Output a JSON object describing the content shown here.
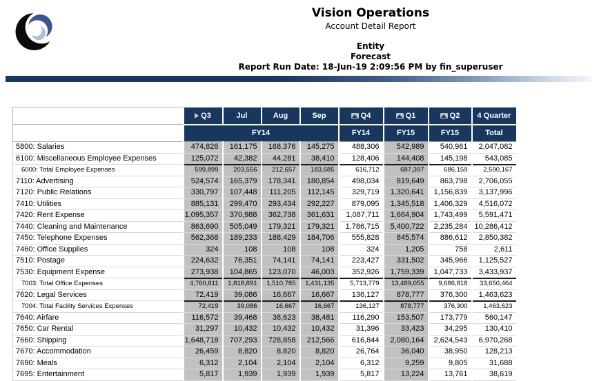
{
  "header": {
    "company": "Vision Operations",
    "report_name": "Account Detail Report",
    "dimension": "Entity",
    "scenario": "Forecast",
    "run_date": "Report Run Date: 18-Jun-19 2:09:56 PM by fin_superuser"
  },
  "colors": {
    "header_navy": "#17375e",
    "shaded_cell": "#c1c1c1",
    "logo_black": "#0b0b0b",
    "logo_blue": "#3d5493",
    "logo_light_blue": "#aebede"
  },
  "table": {
    "columns": [
      {
        "label": "Q3",
        "icon": "expanded-marker-icon",
        "shaded": true
      },
      {
        "label": "Jul",
        "icon": null,
        "shaded": true
      },
      {
        "label": "Aug",
        "icon": null,
        "shaded": true
      },
      {
        "label": "Sep",
        "icon": null,
        "shaded": true
      },
      {
        "label": "Q4",
        "icon": "collapsed-marker-icon",
        "shaded": false
      },
      {
        "label": "Q1",
        "icon": "collapsed-marker-icon",
        "shaded": true
      },
      {
        "label": "Q2",
        "icon": "collapsed-marker-icon",
        "shaded": false
      },
      {
        "label": "4 Quarter",
        "icon": null,
        "shaded": false
      }
    ],
    "subheaders": [
      {
        "label": "FY14",
        "span": 4
      },
      {
        "label": "FY14",
        "span": 1
      },
      {
        "label": "FY15",
        "span": 1
      },
      {
        "label": "FY15",
        "span": 1
      },
      {
        "label": "Total",
        "span": 1
      }
    ],
    "rows": [
      {
        "label": "5800: Salaries",
        "subtotal": false,
        "values": [
          "474,826",
          "161,175",
          "168,376",
          "145,275",
          "488,306",
          "542,989",
          "540,961",
          "2,047,082"
        ]
      },
      {
        "label": "6100: Miscellaneous Employee Expenses",
        "subtotal": false,
        "values": [
          "125,072",
          "42,382",
          "44,281",
          "38,410",
          "128,406",
          "144,408",
          "145,198",
          "543,085"
        ]
      },
      {
        "label": "6000: Total Employee Expenses",
        "subtotal": true,
        "values": [
          "599,899",
          "203,556",
          "212,657",
          "183,685",
          "616,712",
          "687,397",
          "686,159",
          "2,590,167"
        ]
      },
      {
        "label": "7110: Advertising",
        "subtotal": false,
        "values": [
          "524,574",
          "165,379",
          "178,341",
          "180,854",
          "498,034",
          "819,649",
          "863,798",
          "2,706,055"
        ]
      },
      {
        "label": "7120: Public Relations",
        "subtotal": false,
        "values": [
          "330,797",
          "107,448",
          "111,205",
          "112,145",
          "329,719",
          "1,320,641",
          "1,156,839",
          "3,137,996"
        ]
      },
      {
        "label": "7410: Utilities",
        "subtotal": false,
        "values": [
          "885,131",
          "299,470",
          "293,434",
          "292,227",
          "879,095",
          "1,345,518",
          "1,406,329",
          "4,516,072"
        ]
      },
      {
        "label": "7420: Rent Expense",
        "subtotal": false,
        "values": [
          "1,095,357",
          "370,988",
          "362,738",
          "361,631",
          "1,087,711",
          "1,664,904",
          "1,743,499",
          "5,591,471"
        ]
      },
      {
        "label": "7440: Cleaning and Maintenance",
        "subtotal": false,
        "values": [
          "863,690",
          "505,049",
          "179,321",
          "179,321",
          "1,786,715",
          "5,400,722",
          "2,235,284",
          "10,286,412"
        ]
      },
      {
        "label": "7450: Telephone Expenses",
        "subtotal": false,
        "values": [
          "562,368",
          "189,233",
          "188,429",
          "184,706",
          "555,828",
          "845,574",
          "886,612",
          "2,850,382"
        ]
      },
      {
        "label": "7460: Office Supplies",
        "subtotal": false,
        "values": [
          "324",
          "108",
          "108",
          "108",
          "324",
          "1,205",
          "758",
          "2,611"
        ]
      },
      {
        "label": "7510: Postage",
        "subtotal": false,
        "values": [
          "224,632",
          "76,351",
          "74,141",
          "74,141",
          "223,427",
          "331,502",
          "345,966",
          "1,125,527"
        ]
      },
      {
        "label": "7530: Equipment Expense",
        "subtotal": false,
        "values": [
          "273,938",
          "104,865",
          "123,070",
          "46,003",
          "352,926",
          "1,759,339",
          "1,047,733",
          "3,433,937"
        ]
      },
      {
        "label": "7003: Total Office Expenses",
        "subtotal": true,
        "values": [
          "4,760,811",
          "1,818,891",
          "1,510,785",
          "1,431,135",
          "5,713,779",
          "13,489,055",
          "9,686,818",
          "33,650,464"
        ]
      },
      {
        "label": "7620: Legal Services",
        "subtotal": false,
        "values": [
          "72,419",
          "39,086",
          "16,667",
          "16,667",
          "136,127",
          "878,777",
          "376,300",
          "1,463,623"
        ]
      },
      {
        "label": "7004: Total Facility Services Expenses",
        "subtotal": true,
        "values": [
          "72,419",
          "39,086",
          "16,667",
          "16,667",
          "136,127",
          "878,777",
          "376,300",
          "1,463,623"
        ]
      },
      {
        "label": "7640: Airfare",
        "subtotal": false,
        "values": [
          "116,572",
          "39,468",
          "38,623",
          "38,481",
          "116,290",
          "153,507",
          "173,779",
          "560,147"
        ]
      },
      {
        "label": "7650: Car Rental",
        "subtotal": false,
        "values": [
          "31,297",
          "10,432",
          "10,432",
          "10,432",
          "31,396",
          "33,423",
          "34,295",
          "130,410"
        ]
      },
      {
        "label": "7660: Shipping",
        "subtotal": false,
        "values": [
          "1,648,718",
          "707,293",
          "728,858",
          "212,566",
          "616,844",
          "2,080,164",
          "2,624,543",
          "6,970,268"
        ]
      },
      {
        "label": "7670: Accommodation",
        "subtotal": false,
        "values": [
          "26,459",
          "8,820",
          "8,820",
          "8,820",
          "26,764",
          "36,040",
          "38,950",
          "128,213"
        ]
      },
      {
        "label": "7690: Meals",
        "subtotal": false,
        "values": [
          "6,312",
          "2,104",
          "2,104",
          "2,104",
          "6,312",
          "9,259",
          "9,805",
          "31,688"
        ]
      },
      {
        "label": "7695: Entertainment",
        "subtotal": false,
        "values": [
          "5,817",
          "1,939",
          "1,939",
          "1,939",
          "5,817",
          "13,224",
          "13,761",
          "38,619"
        ]
      }
    ]
  }
}
